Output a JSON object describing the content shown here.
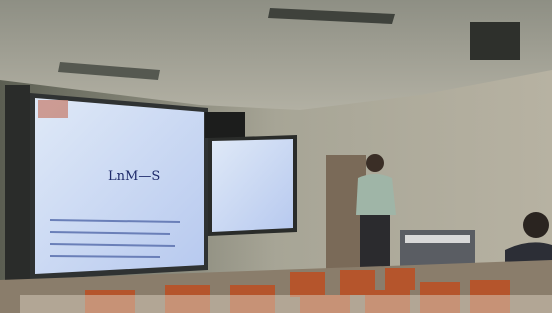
{
  "slide": {
    "formula": "LnM—S"
  }
}
